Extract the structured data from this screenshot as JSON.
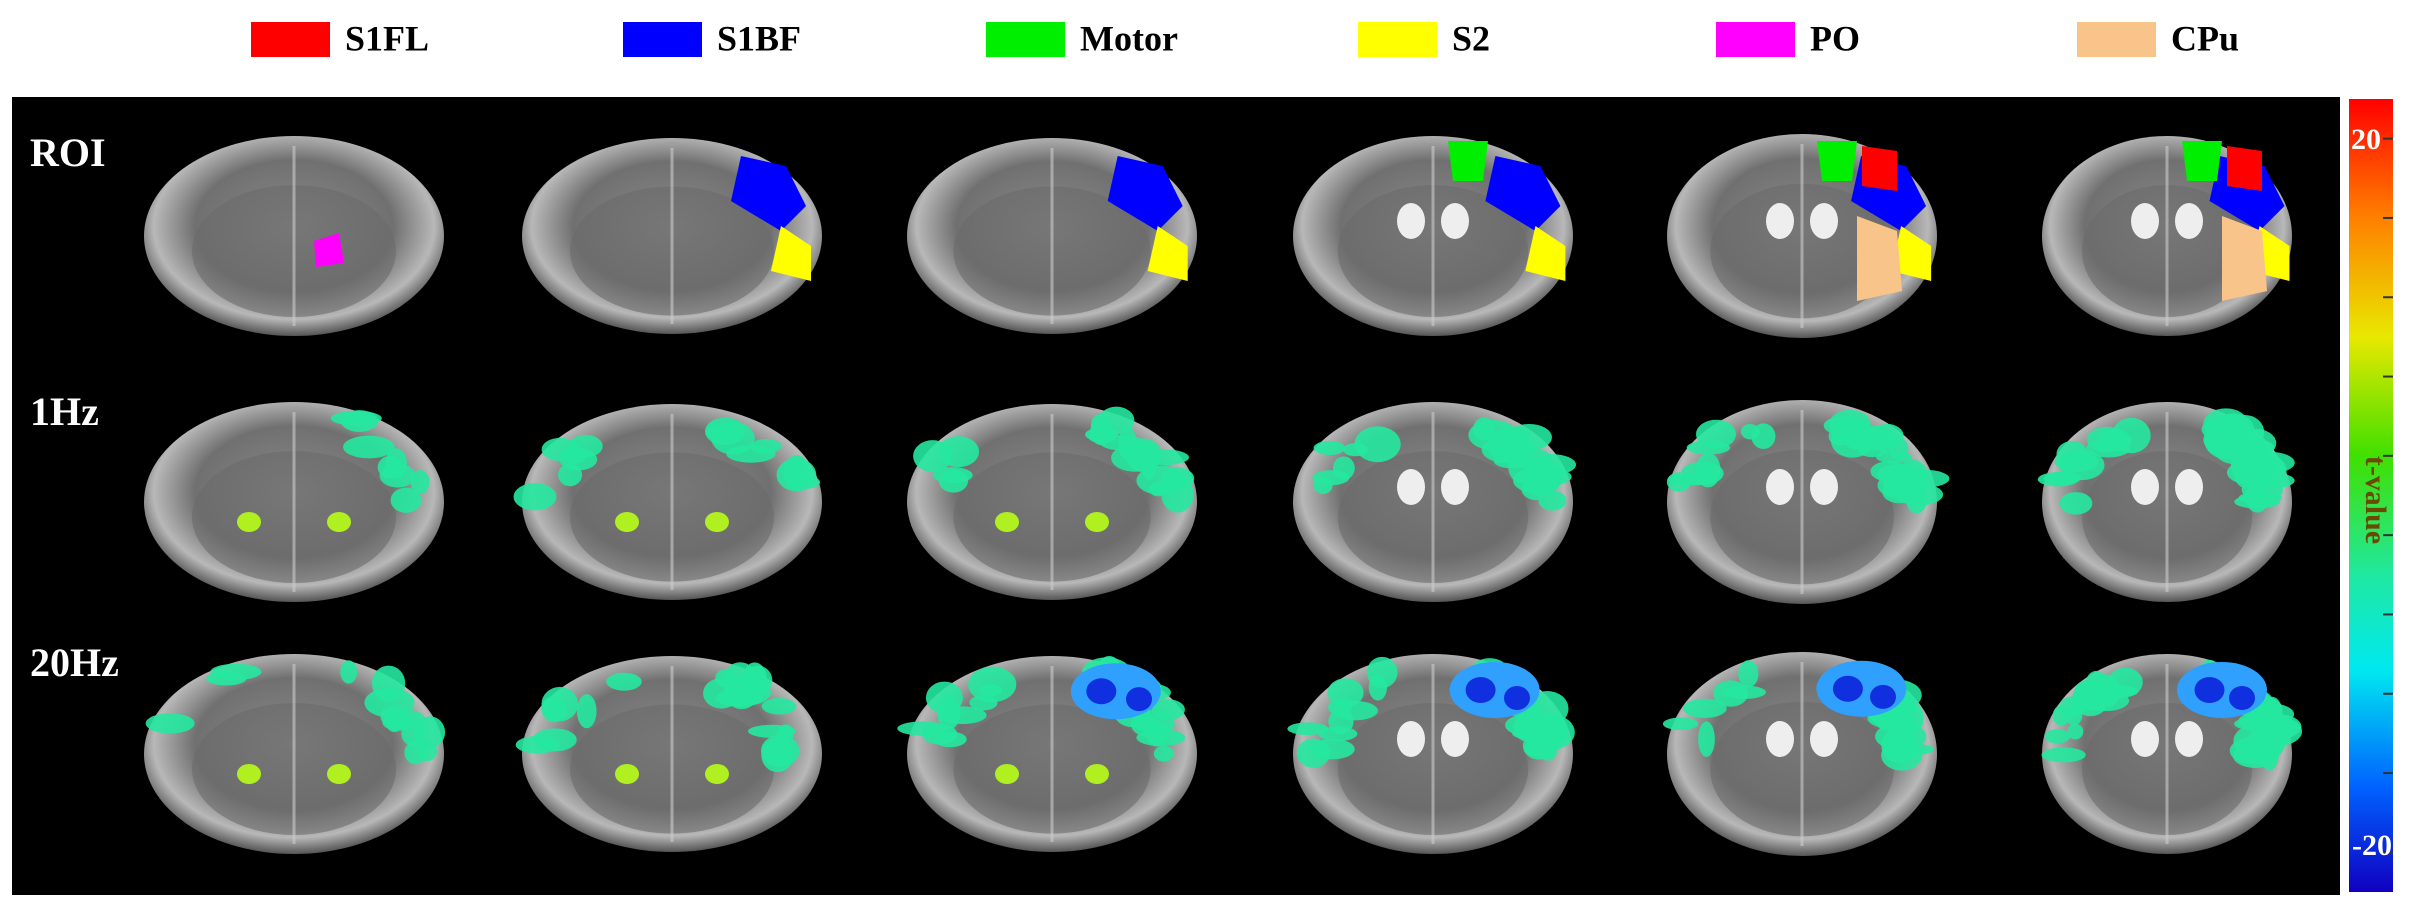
{
  "legend": [
    {
      "label": "S1FL",
      "color": "#ff0000"
    },
    {
      "label": "S1BF",
      "color": "#0000ff"
    },
    {
      "label": "Motor",
      "color": "#00ee00"
    },
    {
      "label": "S2",
      "color": "#ffff00"
    },
    {
      "label": "PO",
      "color": "#ff00ff"
    },
    {
      "label": "CPu",
      "color": "#f9c48a"
    }
  ],
  "rows": [
    {
      "label": "ROI"
    },
    {
      "label": "1Hz"
    },
    {
      "label": "20Hz"
    }
  ],
  "colorbar": {
    "title": "t-value",
    "top_label": "20",
    "bottom_label": "-20"
  }
}
